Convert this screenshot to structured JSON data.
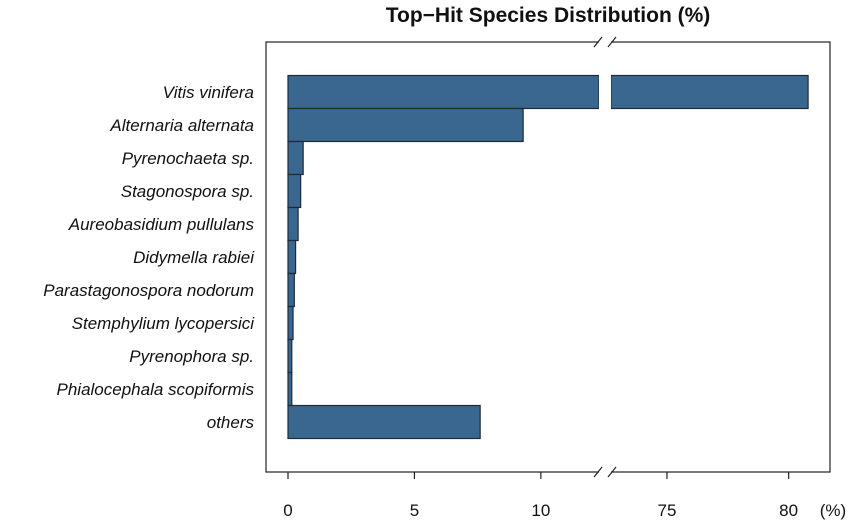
{
  "chart_data": {
    "type": "bar",
    "orientation": "horizontal",
    "title": "Top−Hit Species Distribution (%)",
    "unit_label": "(%)",
    "categories": [
      "Vitis vinifera",
      "Alternaria alternata",
      "Pyrenochaeta sp.",
      "Stagonospora sp.",
      "Aureobasidium pullulans",
      "Didymella rabiei",
      "Parastagonospora nodorum",
      "Stemphylium lycopersici",
      "Pyrenophora sp.",
      "Phialocephala scopiformis",
      "others"
    ],
    "values": [
      80.8,
      9.3,
      0.6,
      0.5,
      0.4,
      0.3,
      0.25,
      0.2,
      0.15,
      0.15,
      7.6
    ],
    "x_axis_break": {
      "lower_segment": [
        0,
        12.3
      ],
      "upper_segment": [
        72.7,
        81.7
      ]
    },
    "x_ticks": [
      0,
      5,
      10,
      75,
      80
    ],
    "grid": false,
    "bar_color": "#3a6790"
  }
}
